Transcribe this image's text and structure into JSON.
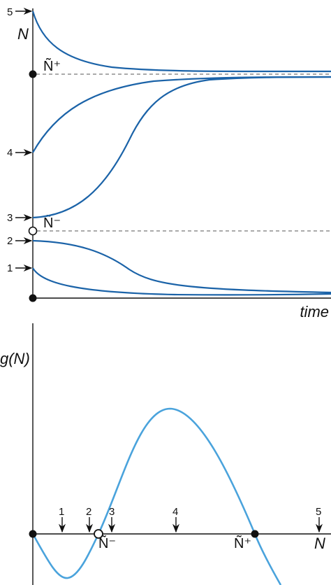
{
  "top_panel": {
    "y_axis_label": "N",
    "x_axis_label": "time",
    "start_labels": [
      "1",
      "2",
      "3",
      "4",
      "5"
    ],
    "stable_label": "Ñ⁺",
    "unstable_label": "Ñ⁻"
  },
  "bottom_panel": {
    "y_axis_label": "g(N)",
    "x_axis_label": "N",
    "arrow_labels": [
      "1",
      "2",
      "3",
      "4",
      "5"
    ],
    "unstable_label": "Ñ⁻",
    "stable_label": "Ñ⁺"
  },
  "colors": {
    "trajectories": "#1b63a8",
    "growth_curve": "#4aa3dc",
    "axes": "#111111"
  }
}
